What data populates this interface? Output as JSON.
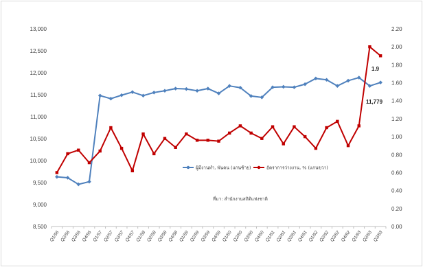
{
  "chart_data": {
    "type": "line",
    "categories": [
      "Q1/56",
      "Q2/56",
      "Q3/56",
      "Q4/56",
      "Q1/57",
      "Q2/57",
      "Q3/57",
      "Q4/57",
      "Q1/58",
      "Q2/58",
      "Q3/58",
      "Q4/58",
      "Q1/59",
      "Q2/59",
      "Q3/59",
      "Q4/59",
      "Q1/60",
      "Q2/60",
      "Q3/60",
      "Q4/60",
      "Q1/61",
      "Q2/61",
      "Q3/61",
      "Q4/61",
      "Q1/62",
      "Q2/62",
      "Q3/62",
      "Q4/62",
      "Q1/63",
      "Q2/63",
      "Q3/63"
    ],
    "series": [
      {
        "name": "ผู้มีงานทำ, พันคน (แกนซ้าย)",
        "axis": "left",
        "color": "#4f81bd",
        "values": [
          9630,
          9610,
          9460,
          9520,
          11480,
          11410,
          11490,
          11560,
          11480,
          11550,
          11590,
          11640,
          11630,
          11590,
          11640,
          11530,
          11700,
          11660,
          11470,
          11440,
          11670,
          11680,
          11670,
          11740,
          11870,
          11840,
          11700,
          11820,
          11890,
          11700,
          11779
        ]
      },
      {
        "name": "อัตราการว่างงาน, % (แกนขวา)",
        "axis": "right",
        "color": "#c00000",
        "values": [
          0.6,
          0.81,
          0.85,
          0.71,
          0.84,
          1.1,
          0.87,
          0.62,
          1.03,
          0.81,
          0.98,
          0.88,
          1.03,
          0.96,
          0.96,
          0.95,
          1.04,
          1.12,
          1.04,
          0.98,
          1.11,
          0.92,
          1.11,
          1.0,
          0.87,
          1.1,
          1.17,
          0.9,
          1.12,
          2.0,
          1.9
        ]
      }
    ],
    "y_left": {
      "lim": [
        8500,
        13000
      ],
      "ticks": [
        "8,500",
        "9,000",
        "9,500",
        "10,000",
        "10,500",
        "11,000",
        "11,500",
        "12,000",
        "12,500",
        "13,000"
      ]
    },
    "y_right": {
      "lim": [
        0,
        2.2
      ],
      "ticks": [
        "0.00",
        "0.20",
        "0.40",
        "0.60",
        "0.80",
        "1.00",
        "1.20",
        "1.40",
        "1.60",
        "1.80",
        "2.00",
        "2.20"
      ]
    },
    "annotations": {
      "rate_label": "1.9",
      "employed_label": "11,779"
    },
    "source": "ที่มา: สำนักงานสถิติแห่งชาติ",
    "grid": false,
    "legend_position": "center-right"
  }
}
